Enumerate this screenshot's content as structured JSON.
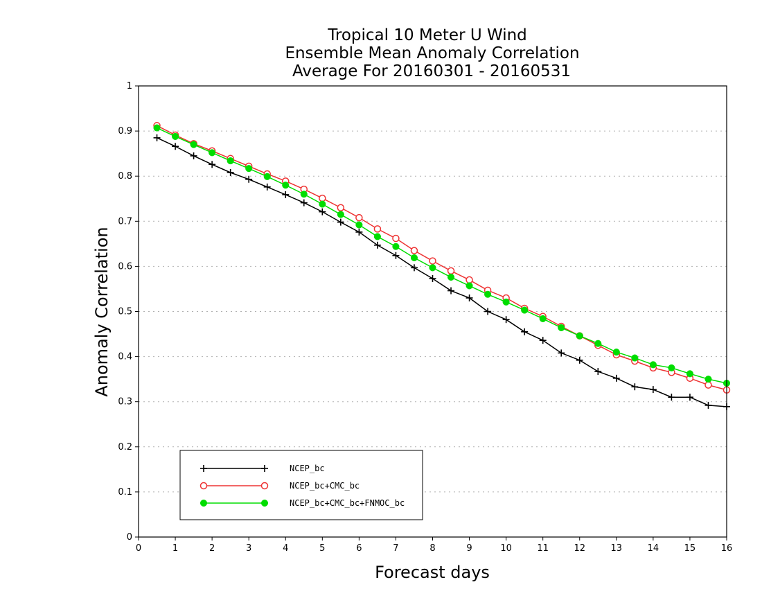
{
  "chart_data": {
    "type": "line",
    "title": [
      "Tropical 10 Meter U Wind",
      "Ensemble Mean Anomaly Correlation",
      "Average For 20160301 - 20160531"
    ],
    "xlabel": "Forecast days",
    "ylabel": "Anomaly Correlation",
    "xlim": [
      0,
      16
    ],
    "ylim": [
      0,
      1
    ],
    "xticks": [
      0,
      1,
      2,
      3,
      4,
      5,
      6,
      7,
      8,
      9,
      10,
      11,
      12,
      13,
      14,
      15,
      16
    ],
    "xtick_labels": [
      "0",
      "1",
      "2",
      "3",
      "4",
      "5",
      "6",
      "7",
      "8",
      "9",
      "10",
      "11",
      "12",
      "13",
      "14",
      "15",
      "16"
    ],
    "yticks": [
      0,
      0.1,
      0.2,
      0.3,
      0.4,
      0.5,
      0.6,
      0.7,
      0.8,
      0.9,
      1
    ],
    "ytick_labels": [
      "0",
      "0.1",
      "0.2",
      "0.3",
      "0.4",
      "0.5",
      "0.6",
      "0.7",
      "0.8",
      "0.9",
      "1"
    ],
    "grid": "horizontal dotted",
    "legend_position": "lower-left",
    "x": [
      0.5,
      1,
      1.5,
      2,
      2.5,
      3,
      3.5,
      4,
      4.5,
      5,
      5.5,
      6,
      6.5,
      7,
      7.5,
      8,
      8.5,
      9,
      9.5,
      10,
      10.5,
      11,
      11.5,
      12,
      12.5,
      13,
      13.5,
      14,
      14.5,
      15,
      15.5,
      16
    ],
    "series": [
      {
        "name": "NCEP_bc",
        "color": "#000000",
        "marker": "plus",
        "values": [
          0.885,
          0.866,
          0.845,
          0.826,
          0.808,
          0.793,
          0.776,
          0.759,
          0.741,
          0.721,
          0.698,
          0.676,
          0.647,
          0.624,
          0.597,
          0.573,
          0.546,
          0.53,
          0.5,
          0.482,
          0.455,
          0.436,
          0.408,
          0.392,
          0.367,
          0.352,
          0.333,
          0.327,
          0.31,
          0.31,
          0.292,
          0.289
        ]
      },
      {
        "name": "NCEP_bc+CMC_bc",
        "color": "#ee3333",
        "marker": "open-circle",
        "values": [
          0.912,
          0.891,
          0.872,
          0.856,
          0.839,
          0.822,
          0.805,
          0.789,
          0.771,
          0.751,
          0.73,
          0.708,
          0.683,
          0.662,
          0.635,
          0.612,
          0.59,
          0.57,
          0.547,
          0.53,
          0.507,
          0.489,
          0.467,
          0.446,
          0.425,
          0.404,
          0.39,
          0.375,
          0.365,
          0.352,
          0.337,
          0.326
        ]
      },
      {
        "name": "NCEP_bc+CMC_bc+FNMOC_bc",
        "color": "#00dd00",
        "marker": "filled-circle",
        "values": [
          0.907,
          0.888,
          0.87,
          0.852,
          0.834,
          0.817,
          0.799,
          0.78,
          0.76,
          0.738,
          0.715,
          0.692,
          0.666,
          0.644,
          0.619,
          0.597,
          0.576,
          0.557,
          0.538,
          0.521,
          0.503,
          0.484,
          0.464,
          0.446,
          0.429,
          0.41,
          0.397,
          0.382,
          0.375,
          0.362,
          0.35,
          0.341
        ]
      }
    ]
  }
}
